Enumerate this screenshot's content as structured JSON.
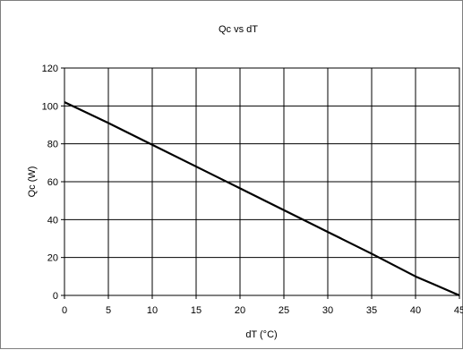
{
  "colors": {
    "line": "#000000",
    "grid": "#000000",
    "frame": "#7f7f7f",
    "background": "#ffffff"
  },
  "chart_data": {
    "type": "line",
    "title": "Qc vs dT",
    "xlabel": "dT (°C)",
    "ylabel": "Qc (W)",
    "xlim": [
      0,
      45
    ],
    "ylim": [
      0,
      120
    ],
    "xticks": [
      0,
      5,
      10,
      15,
      20,
      25,
      30,
      35,
      40,
      45
    ],
    "yticks": [
      0,
      20,
      40,
      60,
      80,
      100,
      120
    ],
    "grid": true,
    "legend": "none",
    "series": [
      {
        "x": [
          0,
          5,
          10,
          15,
          20,
          25,
          30,
          35,
          40,
          42,
          44,
          45
        ],
        "y": [
          102,
          91,
          79.5,
          68,
          56.5,
          45,
          33.5,
          22,
          10,
          6,
          2,
          0
        ]
      }
    ]
  }
}
